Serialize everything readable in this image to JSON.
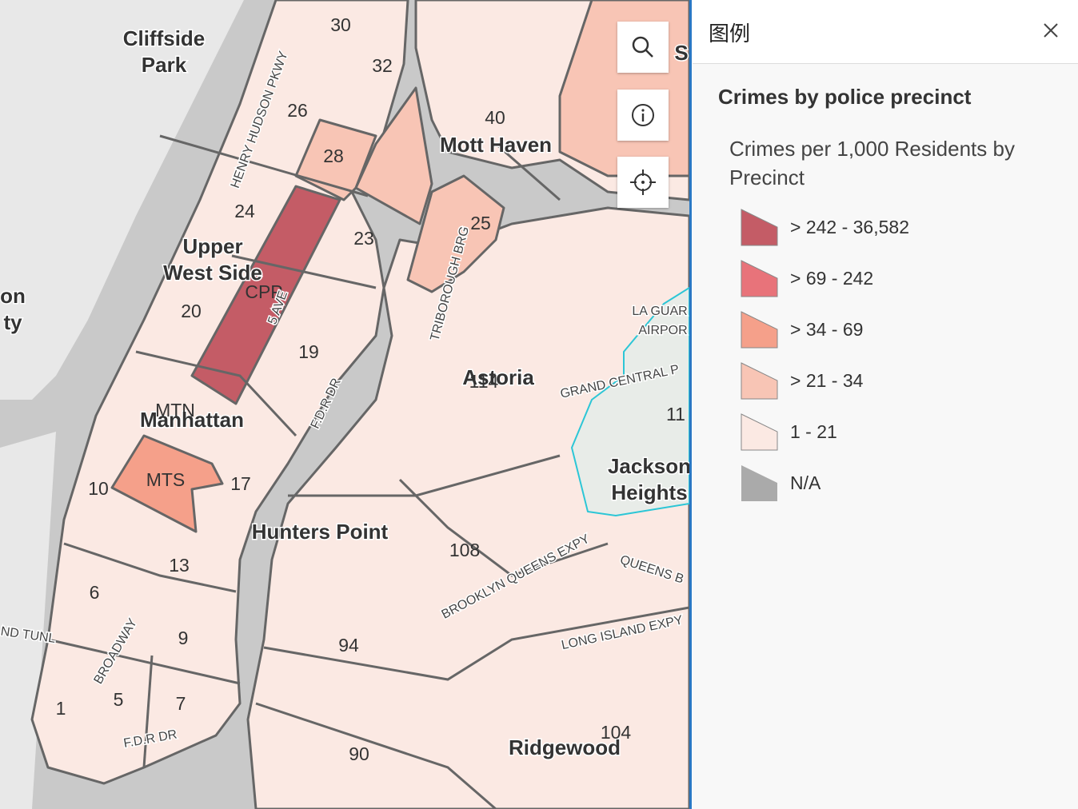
{
  "map": {
    "places": [
      {
        "lines": [
          "Cliffside",
          "Park"
        ]
      },
      {
        "lines": [
          "Upper",
          "West Side"
        ]
      },
      {
        "lines": [
          "Mott Haven"
        ]
      },
      {
        "lines": [
          "Manhattan"
        ]
      },
      {
        "lines": [
          "Hunters Point"
        ]
      },
      {
        "lines": [
          "Astoria"
        ]
      },
      {
        "lines": [
          "Jackson",
          "Heights"
        ]
      },
      {
        "lines": [
          "Ridgewood"
        ]
      },
      {
        "lines": [
          "on",
          "ty"
        ]
      },
      {
        "lines": [
          "S"
        ]
      }
    ],
    "precincts": [
      "30",
      "32",
      "26",
      "40",
      "28",
      "24",
      "23",
      "25",
      "CPP",
      "20",
      "19",
      "114",
      "MTN",
      "MTS",
      "17",
      "10",
      "108",
      "13",
      "6",
      "9",
      "94",
      "5",
      "1",
      "7",
      "104",
      "90",
      "11"
    ],
    "roads": [
      "HENRY HUDSON PKWY",
      "5 AVE",
      "TRIBOROUGH BRG",
      "F.D.R DR",
      "GRAND CENTRAL P",
      "LA GUAR",
      "AIRPOR",
      "QUEENS B",
      "BROOKLYN QUEENS EXPY",
      "LONG ISLAND EXPY",
      "ND TUNL",
      "BROADWAY",
      "F.D.R DR"
    ]
  },
  "legend": {
    "header": "图例",
    "layer_title": "Crimes by police precinct",
    "field_title": "Crimes per 1,000 Residents by Precinct",
    "classes": [
      {
        "label": "> 242 - 36,582",
        "color": "#c45c66"
      },
      {
        "label": "> 69 - 242",
        "color": "#e8737a"
      },
      {
        "label": "> 34 - 69",
        "color": "#f5a08a"
      },
      {
        "label": "> 21 - 34",
        "color": "#f8c5b5"
      },
      {
        "label": "1 - 21",
        "color": "#fbe9e3"
      },
      {
        "label": "N/A",
        "color": "#aaaaaa"
      }
    ]
  }
}
